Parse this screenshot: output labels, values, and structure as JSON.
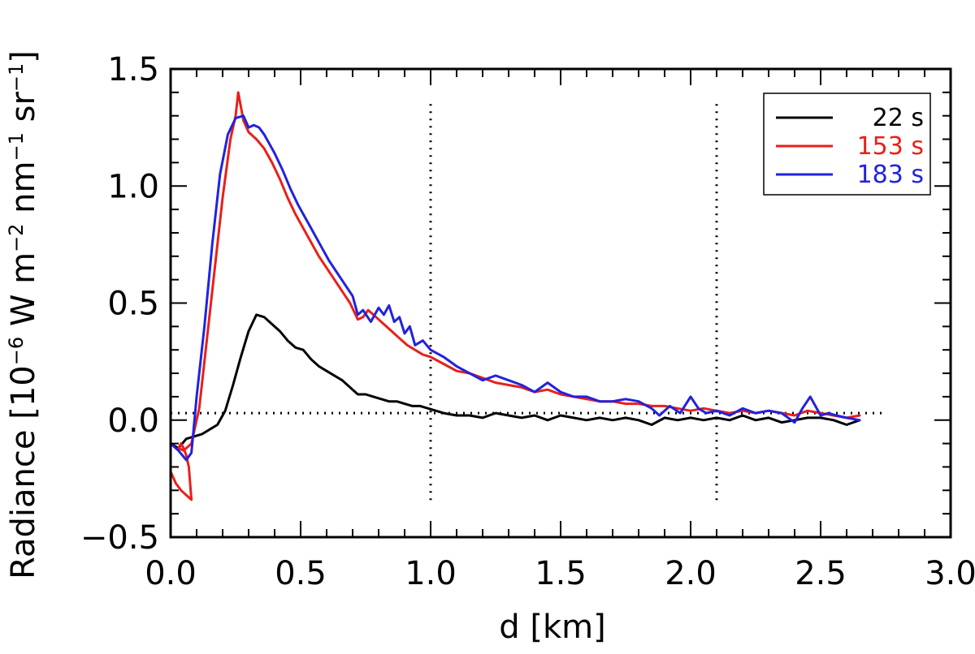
{
  "chart_data": {
    "type": "line",
    "title": "",
    "xlabel": "d [km]",
    "ylabel_parts": {
      "prefix": "Radiance [10",
      "exp1": "−6",
      "mid1": " W m",
      "exp2": "−2",
      "mid2": " nm",
      "exp3": "−1",
      "mid3": " sr",
      "exp4": "−1",
      "suffix": "]"
    },
    "xlim": [
      0.0,
      3.0
    ],
    "ylim": [
      -0.5,
      1.5
    ],
    "x_ticks": [
      0.0,
      0.5,
      1.0,
      1.5,
      2.0,
      2.5,
      3.0
    ],
    "x_tick_labels": [
      "0.0",
      "0.5",
      "1.0",
      "1.5",
      "2.0",
      "2.5",
      "3.0"
    ],
    "y_ticks": [
      -0.5,
      0.0,
      0.5,
      1.0,
      1.5
    ],
    "y_tick_labels": [
      "−0.5",
      "0.0",
      "0.5",
      "1.0",
      "1.5"
    ],
    "legend_position": "top-right",
    "reference_lines": {
      "horizontal_y": 0.03,
      "horizontal_x_range": [
        0.0,
        2.75
      ],
      "vertical_x": [
        1.0,
        2.1
      ],
      "vertical_y_range": [
        -0.35,
        1.35
      ]
    },
    "series": [
      {
        "name": "22 s",
        "color": "#000000",
        "x": [
          0.0,
          0.03,
          0.06,
          0.09,
          0.12,
          0.15,
          0.18,
          0.21,
          0.24,
          0.27,
          0.3,
          0.33,
          0.36,
          0.39,
          0.42,
          0.45,
          0.48,
          0.51,
          0.54,
          0.57,
          0.6,
          0.63,
          0.66,
          0.69,
          0.72,
          0.75,
          0.78,
          0.81,
          0.84,
          0.87,
          0.9,
          0.93,
          0.96,
          0.99,
          1.02,
          1.05,
          1.1,
          1.15,
          1.2,
          1.25,
          1.3,
          1.35,
          1.4,
          1.45,
          1.5,
          1.55,
          1.6,
          1.65,
          1.7,
          1.75,
          1.8,
          1.85,
          1.9,
          1.95,
          2.0,
          2.05,
          2.1,
          2.15,
          2.2,
          2.25,
          2.3,
          2.35,
          2.4,
          2.45,
          2.5,
          2.55,
          2.6,
          2.65
        ],
        "values": [
          -0.1,
          -0.12,
          -0.08,
          -0.07,
          -0.06,
          -0.04,
          -0.02,
          0.04,
          0.15,
          0.27,
          0.38,
          0.45,
          0.44,
          0.41,
          0.38,
          0.34,
          0.31,
          0.3,
          0.26,
          0.23,
          0.21,
          0.19,
          0.17,
          0.14,
          0.11,
          0.11,
          0.1,
          0.09,
          0.08,
          0.08,
          0.07,
          0.06,
          0.06,
          0.05,
          0.04,
          0.03,
          0.02,
          0.02,
          0.01,
          0.03,
          0.02,
          0.01,
          0.02,
          0.0,
          0.02,
          0.01,
          0.0,
          0.01,
          0.0,
          0.01,
          0.0,
          -0.02,
          0.01,
          0.0,
          0.01,
          0.0,
          0.01,
          0.0,
          0.02,
          0.0,
          0.01,
          -0.01,
          0.0,
          0.01,
          0.01,
          0.0,
          -0.02,
          0.0
        ]
      },
      {
        "name": "153 s",
        "color": "#e8201a",
        "x": [
          0.0,
          0.02,
          0.04,
          0.06,
          0.08,
          0.07,
          0.06,
          0.05,
          0.04,
          0.03,
          0.05,
          0.08,
          0.11,
          0.14,
          0.17,
          0.2,
          0.23,
          0.25,
          0.26,
          0.28,
          0.3,
          0.33,
          0.36,
          0.39,
          0.42,
          0.45,
          0.48,
          0.51,
          0.54,
          0.57,
          0.6,
          0.63,
          0.66,
          0.69,
          0.72,
          0.74,
          0.76,
          0.78,
          0.8,
          0.82,
          0.85,
          0.88,
          0.91,
          0.94,
          0.97,
          1.0,
          1.05,
          1.1,
          1.15,
          1.2,
          1.25,
          1.3,
          1.35,
          1.4,
          1.45,
          1.5,
          1.55,
          1.6,
          1.65,
          1.7,
          1.75,
          1.8,
          1.85,
          1.9,
          1.95,
          2.0,
          2.05,
          2.1,
          2.15,
          2.2,
          2.25,
          2.3,
          2.35,
          2.4,
          2.45,
          2.5,
          2.55,
          2.6,
          2.65
        ],
        "values": [
          -0.22,
          -0.27,
          -0.3,
          -0.32,
          -0.34,
          -0.2,
          -0.15,
          -0.12,
          -0.1,
          -0.12,
          -0.13,
          -0.1,
          0.05,
          0.35,
          0.65,
          0.95,
          1.2,
          1.3,
          1.4,
          1.28,
          1.23,
          1.2,
          1.16,
          1.1,
          1.03,
          0.95,
          0.88,
          0.82,
          0.76,
          0.7,
          0.65,
          0.6,
          0.55,
          0.5,
          0.43,
          0.44,
          0.47,
          0.45,
          0.43,
          0.41,
          0.38,
          0.35,
          0.32,
          0.3,
          0.28,
          0.27,
          0.24,
          0.21,
          0.2,
          0.18,
          0.16,
          0.15,
          0.14,
          0.12,
          0.13,
          0.11,
          0.1,
          0.09,
          0.08,
          0.08,
          0.07,
          0.07,
          0.06,
          0.06,
          0.05,
          0.04,
          0.05,
          0.04,
          0.03,
          0.04,
          0.03,
          0.04,
          0.03,
          0.02,
          0.04,
          0.03,
          0.02,
          0.01,
          0.02
        ]
      },
      {
        "name": "183 s",
        "color": "#2222dd",
        "x": [
          0.0,
          0.03,
          0.06,
          0.08,
          0.1,
          0.13,
          0.16,
          0.19,
          0.22,
          0.25,
          0.28,
          0.3,
          0.32,
          0.34,
          0.36,
          0.38,
          0.4,
          0.43,
          0.46,
          0.49,
          0.52,
          0.55,
          0.58,
          0.61,
          0.64,
          0.67,
          0.7,
          0.72,
          0.74,
          0.77,
          0.8,
          0.82,
          0.84,
          0.86,
          0.88,
          0.9,
          0.92,
          0.94,
          0.97,
          1.0,
          1.05,
          1.1,
          1.15,
          1.2,
          1.25,
          1.3,
          1.35,
          1.4,
          1.45,
          1.5,
          1.55,
          1.6,
          1.65,
          1.7,
          1.75,
          1.8,
          1.85,
          1.88,
          1.92,
          1.96,
          2.0,
          2.03,
          2.06,
          2.1,
          2.15,
          2.2,
          2.25,
          2.3,
          2.35,
          2.4,
          2.43,
          2.46,
          2.5,
          2.53,
          2.56,
          2.6,
          2.65
        ],
        "values": [
          -0.1,
          -0.13,
          -0.17,
          -0.14,
          0.1,
          0.4,
          0.75,
          1.05,
          1.22,
          1.29,
          1.3,
          1.25,
          1.26,
          1.25,
          1.22,
          1.18,
          1.14,
          1.07,
          0.99,
          0.92,
          0.86,
          0.8,
          0.74,
          0.68,
          0.63,
          0.58,
          0.53,
          0.45,
          0.47,
          0.42,
          0.48,
          0.45,
          0.49,
          0.42,
          0.44,
          0.37,
          0.4,
          0.32,
          0.34,
          0.3,
          0.27,
          0.23,
          0.2,
          0.17,
          0.19,
          0.17,
          0.15,
          0.12,
          0.16,
          0.12,
          0.1,
          0.1,
          0.08,
          0.08,
          0.09,
          0.08,
          0.05,
          0.02,
          0.06,
          0.03,
          0.1,
          0.05,
          0.03,
          0.04,
          0.02,
          0.05,
          0.03,
          0.04,
          0.03,
          -0.01,
          0.05,
          0.1,
          0.02,
          0.03,
          0.02,
          0.01,
          0.0
        ]
      }
    ]
  }
}
